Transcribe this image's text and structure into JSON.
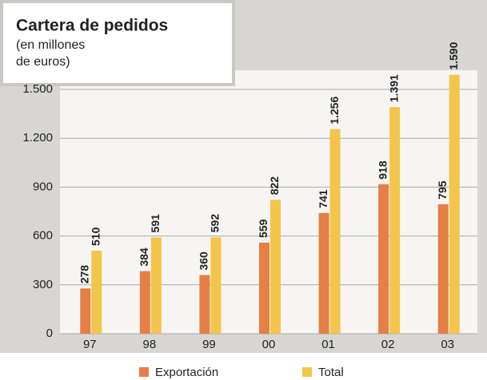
{
  "chart_data": {
    "type": "bar",
    "title": "Cartera de pedidos",
    "subtitle": [
      "(en millones",
      "de euros)"
    ],
    "categories": [
      "97",
      "98",
      "99",
      "00",
      "01",
      "02",
      "03"
    ],
    "series": [
      {
        "name": "Exportación",
        "color": "#e57f45",
        "values": [
          278,
          384,
          360,
          559,
          741,
          918,
          795
        ],
        "value_labels": [
          "278",
          "384",
          "360",
          "559",
          "741",
          "918",
          "795"
        ]
      },
      {
        "name": "Total",
        "color": "#f4c54c",
        "values": [
          510,
          591,
          592,
          822,
          1256,
          1391,
          1590
        ],
        "value_labels": [
          "510",
          "591",
          "592",
          "822",
          "1.256",
          "1.391",
          "1.590"
        ]
      }
    ],
    "ylim": [
      0,
      1600
    ],
    "yticks": [
      0,
      300,
      600,
      900,
      {
        "value": 1200,
        "label": "1.200"
      },
      {
        "value": 1500,
        "label": "1.500"
      }
    ],
    "grid": true
  }
}
